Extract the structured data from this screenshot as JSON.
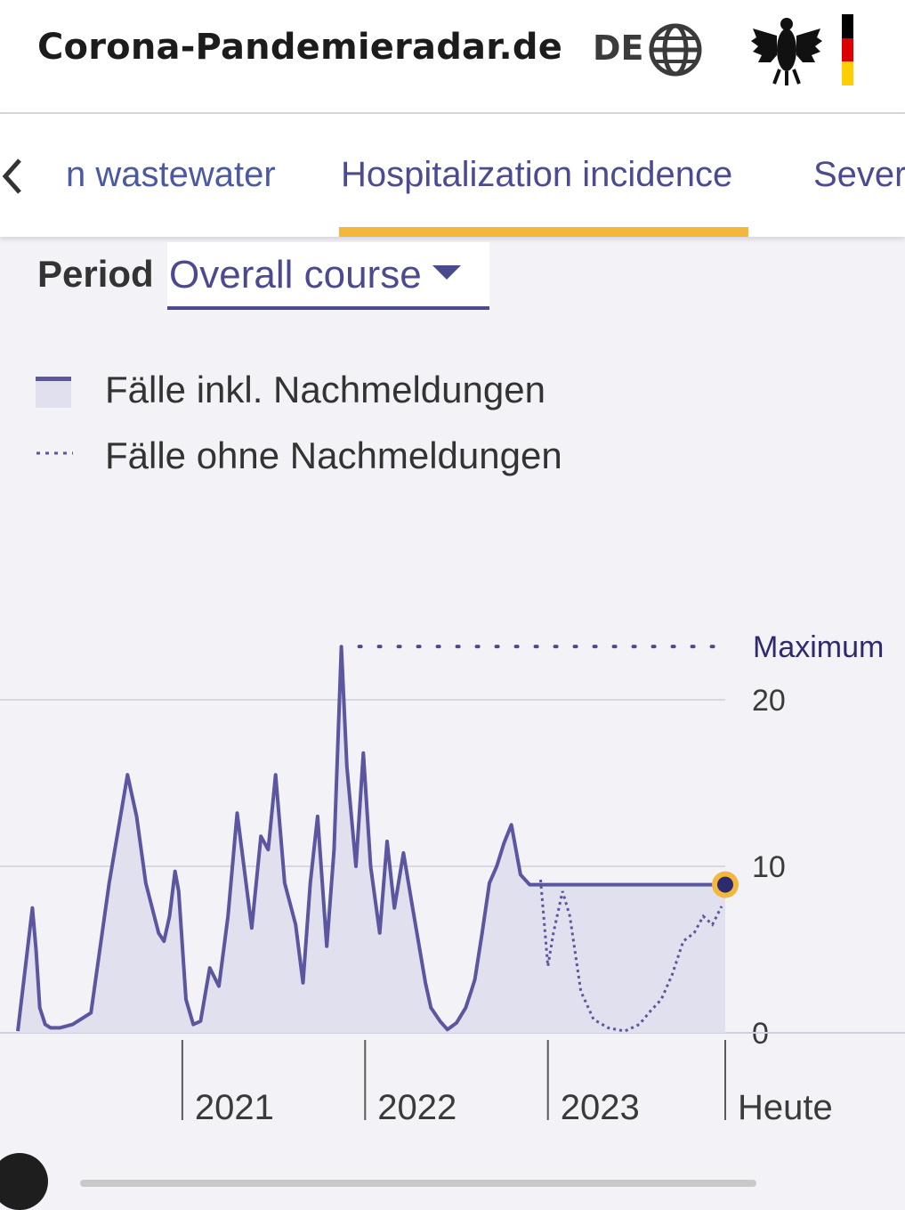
{
  "header": {
    "site_title": "Corona-Pandemieradar.de",
    "language": "DE",
    "icons": [
      "globe-icon",
      "federal-eagle-logo",
      "german-flag"
    ],
    "flag_colors": [
      "#000000",
      "#dd0000",
      "#ffce00"
    ]
  },
  "tabs": {
    "items": [
      {
        "label": "n wastewater",
        "active": false
      },
      {
        "label": "Hospitalization incidence",
        "active": true
      },
      {
        "label": "Severe",
        "active": false
      }
    ],
    "accent_color": "#f3b73b"
  },
  "period": {
    "label": "Period",
    "value": "Overall course"
  },
  "legend": {
    "solid": "Fälle inkl. Nachmeldungen",
    "dotted": "Fälle ohne Nachmeldungen"
  },
  "chart_data": {
    "type": "area",
    "title": "",
    "xlabel": "",
    "ylabel": "",
    "ylim": [
      0,
      25
    ],
    "y_ticks": [
      {
        "value": 0,
        "label": "0"
      },
      {
        "value": 10,
        "label": "10"
      },
      {
        "value": 20,
        "label": "20"
      }
    ],
    "x_ticks": [
      {
        "value": 2021,
        "label": "2021"
      },
      {
        "value": 2022,
        "label": "2022"
      },
      {
        "value": 2023,
        "label": "2023"
      },
      {
        "value": 2023.97,
        "label": "Heute"
      }
    ],
    "grid": true,
    "max_label": "Maximum",
    "max_value": 23.2,
    "current_value": 8.9,
    "colors": {
      "line": "#5b56a0",
      "fill": "#e1e0ee",
      "marker": "#f3b73b",
      "marker_core": "#2d2a6e"
    },
    "series": [
      {
        "name": "Fälle inkl. Nachmeldungen",
        "style": "solid",
        "x": [
          2020.1,
          2020.18,
          2020.2,
          2020.22,
          2020.25,
          2020.28,
          2020.33,
          2020.4,
          2020.5,
          2020.6,
          2020.7,
          2020.75,
          2020.8,
          2020.87,
          2020.9,
          2020.93,
          2020.96,
          2020.98,
          2021.02,
          2021.06,
          2021.1,
          2021.15,
          2021.2,
          2021.25,
          2021.3,
          2021.38,
          2021.43,
          2021.47,
          2021.51,
          2021.56,
          2021.62,
          2021.66,
          2021.7,
          2021.74,
          2021.79,
          2021.83,
          2021.87,
          2021.9,
          2021.95,
          2021.99,
          2022.03,
          2022.08,
          2022.12,
          2022.16,
          2022.21,
          2022.26,
          2022.33,
          2022.36,
          2022.41,
          2022.45,
          2022.5,
          2022.55,
          2022.58,
          2022.6,
          2022.64,
          2022.68,
          2022.72,
          2022.76,
          2022.8,
          2022.85,
          2022.9,
          2022.95,
          2023.02,
          2023.1,
          2023.2,
          2023.3,
          2023.38,
          2023.45,
          2023.52,
          2023.6,
          2023.66,
          2023.72,
          2023.77,
          2023.82,
          2023.85,
          2023.88,
          2023.93,
          2023.97
        ],
        "y": [
          0.1,
          7.5,
          5,
          1.5,
          0.5,
          0.3,
          0.3,
          0.5,
          1.2,
          9,
          15.5,
          13,
          9,
          6,
          5.5,
          7,
          9.7,
          8.5,
          2,
          0.5,
          0.7,
          3.9,
          2.8,
          7,
          13.2,
          6.3,
          11.8,
          11,
          15.5,
          9,
          6.5,
          3,
          9,
          13,
          5.2,
          11,
          23.2,
          16,
          10,
          16.8,
          10,
          6,
          11.5,
          7.5,
          10.8,
          7.5,
          3,
          1.5,
          0.7,
          0.2,
          0.6,
          1.5,
          2.5,
          3.2,
          6,
          9,
          10,
          11.4,
          12.5,
          9.5,
          8.9,
          8.9,
          8.9,
          8.9,
          8.9,
          8.9,
          8.9,
          8.9,
          8.9,
          8.9,
          8.9,
          8.9,
          8.9,
          8.9,
          8.9,
          8.9,
          8.9,
          8.9
        ]
      },
      {
        "name": "Fälle ohne Nachmeldungen",
        "style": "dotted",
        "x": [
          2022.96,
          2023.0,
          2023.03,
          2023.08,
          2023.12,
          2023.18,
          2023.25,
          2023.33,
          2023.42,
          2023.5,
          2023.56,
          2023.62,
          2023.68,
          2023.74,
          2023.8,
          2023.85,
          2023.9,
          2023.95
        ],
        "y": [
          9.2,
          4.0,
          6.0,
          8.5,
          7.0,
          2.5,
          0.8,
          0.3,
          0.1,
          0.5,
          1.3,
          2.0,
          3.5,
          5.5,
          6.0,
          7.0,
          6.5,
          7.6
        ]
      }
    ]
  }
}
